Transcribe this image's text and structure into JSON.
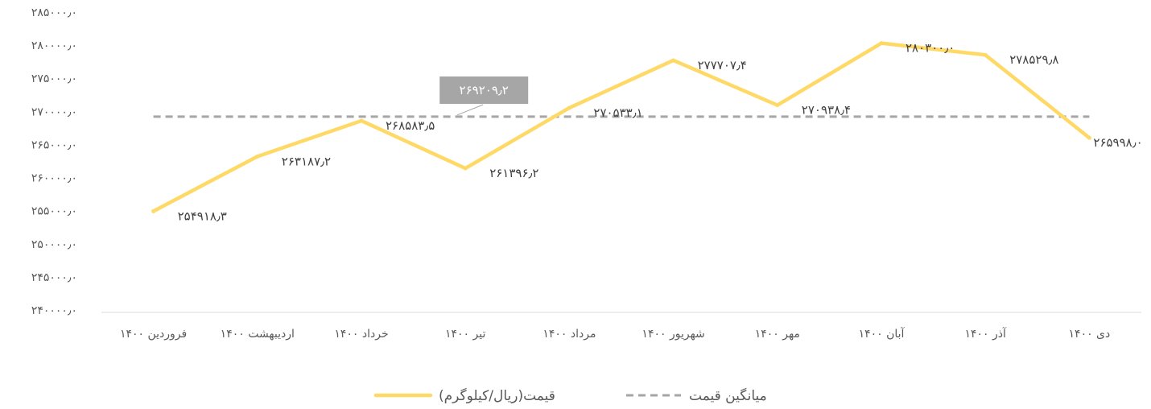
{
  "chart_data": {
    "type": "line",
    "categories": [
      "فروردین ۱۴۰۰",
      "اردیبهشت ۱۴۰۰",
      "خرداد ۱۴۰۰",
      "تیر ۱۴۰۰",
      "مرداد ۱۴۰۰",
      "شهریور ۱۴۰۰",
      "مهر ۱۴۰۰",
      "آبان ۱۴۰۰",
      "آذر ۱۴۰۰",
      "دی ۱۴۰۰"
    ],
    "series": [
      {
        "name": "قیمت(ریال/کیلوگرم)",
        "color": "#FFD966",
        "style": "solid",
        "values": [
          254918.3,
          263187.2,
          268583.5,
          261396.2,
          270533.1,
          277707.4,
          270938.4,
          280300.0,
          278529.8,
          265998.0
        ],
        "labels": [
          "۲۵۴۹۱۸٫۳",
          "۲۶۳۱۸۷٫۲",
          "۲۶۸۵۸۳٫۵",
          "۲۶۱۳۹۶٫۲",
          "۲۷۰۵۳۳٫۱",
          "۲۷۷۷۰۷٫۴",
          "۲۷۰۹۳۸٫۴",
          "۲۸۰۳۰۰٫۰",
          "۲۷۸۵۲۹٫۸",
          "۲۶۵۹۹۸٫۰"
        ]
      },
      {
        "name": "میانگین قیمت",
        "color": "#A6A6A6",
        "style": "dashed",
        "value": 269209.2,
        "label": "۲۶۹۲۰۹٫۲"
      }
    ],
    "yticks": [
      240000,
      245000,
      250000,
      255000,
      260000,
      265000,
      270000,
      275000,
      280000,
      285000
    ],
    "ytick_labels": [
      "۲۴۰۰۰۰٫۰",
      "۲۴۵۰۰۰٫۰",
      "۲۵۰۰۰۰٫۰",
      "۲۵۵۰۰۰٫۰",
      "۲۶۰۰۰۰٫۰",
      "۲۶۵۰۰۰٫۰",
      "۲۷۰۰۰۰٫۰",
      "۲۷۵۰۰۰٫۰",
      "۲۸۰۰۰۰٫۰",
      "۲۸۵۰۰۰٫۰"
    ],
    "ylim": [
      240000,
      285000
    ],
    "legend_position": "bottom",
    "grid": false
  }
}
